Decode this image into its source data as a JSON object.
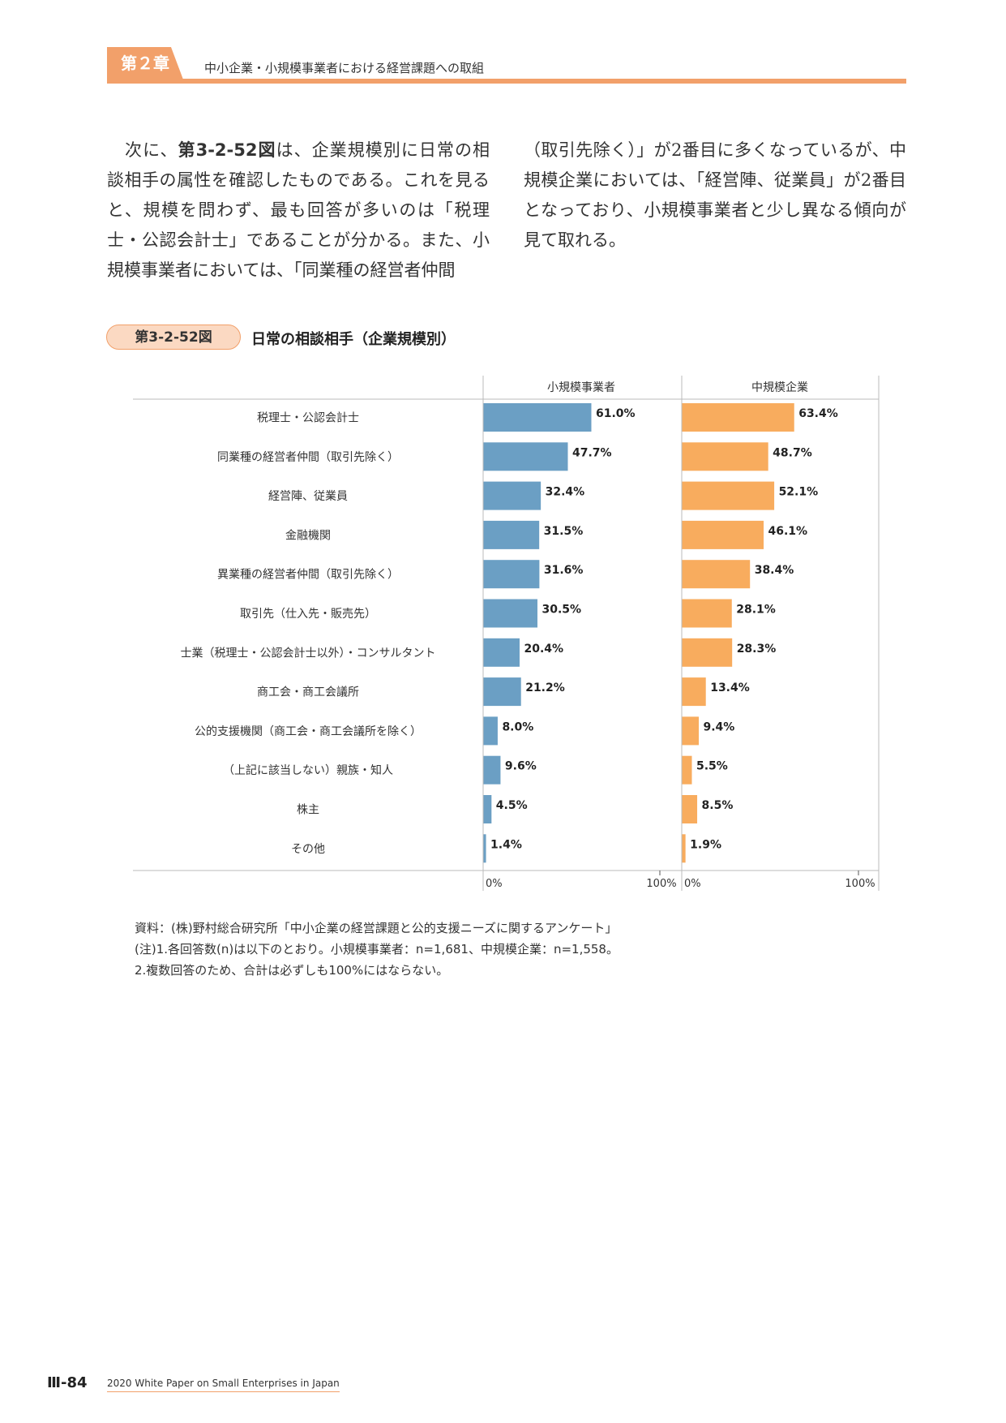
{
  "header": {
    "chapter_label": "第２章",
    "chapter_title": "中小企業・小規模事業者における経営課題への取組"
  },
  "body_text": {
    "left_pre": "　次に、",
    "left_ref": "第3-2-52図",
    "left_post": "は、企業規模別に日常の相談相手の属性を確認したものである。これを見ると、規模を問わず、最も回答が多いのは「税理士・公認会計士」であることが分かる。また、小規模事業者においては、「同業種の経営者仲間",
    "right": "（取引先除く）」が2番目に多くなっているが、中規模企業においては、「経営陣、従業員」が2番目となっており、小規模事業者と少し異なる傾向が見て取れる。"
  },
  "figure": {
    "badge": "第3-2-52図",
    "title": "日常の相談相手（企業規模別）"
  },
  "chart_data": {
    "type": "bar",
    "orientation": "horizontal",
    "categories": [
      "税理士・公認会計士",
      "同業種の経営者仲間（取引先除く）",
      "経営陣、従業員",
      "金融機関",
      "異業種の経営者仲間（取引先除く）",
      "取引先（仕入先・販売先）",
      "士業（税理士・公認会計士以外）・コンサルタント",
      "商工会・商工会議所",
      "公的支援機関（商工会・商工会議所を除く）",
      "（上記に該当しない）親族・知人",
      "株主",
      "その他"
    ],
    "series": [
      {
        "name": "小規模事業者",
        "values": [
          61.0,
          47.7,
          32.4,
          31.5,
          31.6,
          30.5,
          20.4,
          21.2,
          8.0,
          9.6,
          4.5,
          1.4
        ],
        "labels": [
          "61.0%",
          "47.7%",
          "32.4%",
          "31.5%",
          "31.6%",
          "30.5%",
          "20.4%",
          "21.2%",
          "8.0%",
          "9.6%",
          "4.5%",
          "1.4%"
        ],
        "color": "#6b9fc4"
      },
      {
        "name": "中規模企業",
        "values": [
          63.4,
          48.7,
          52.1,
          46.1,
          38.4,
          28.1,
          28.3,
          13.4,
          9.4,
          5.5,
          8.5,
          1.9
        ],
        "labels": [
          "63.4%",
          "48.7%",
          "52.1%",
          "46.1%",
          "38.4%",
          "28.1%",
          "28.3%",
          "13.4%",
          "9.4%",
          "5.5%",
          "8.5%",
          "1.9%"
        ],
        "color": "#f8ac5e"
      }
    ],
    "xlim": [
      0,
      100
    ],
    "axis_labels": [
      "0%",
      "100%"
    ],
    "grid": false
  },
  "notes": [
    "資料：(株)野村総合研究所「中小企業の経営課題と公的支援ニーズに関するアンケート」",
    "(注)1.各回答数(n)は以下のとおり。小規模事業者：n=1,681、中規模企業：n=1,558。",
    "2.複数回答のため、合計は必ずしも100%にはならない。"
  ],
  "footer": {
    "page_number": "Ⅲ-84",
    "publication": "2020 White Paper on Small Enterprises in Japan"
  }
}
